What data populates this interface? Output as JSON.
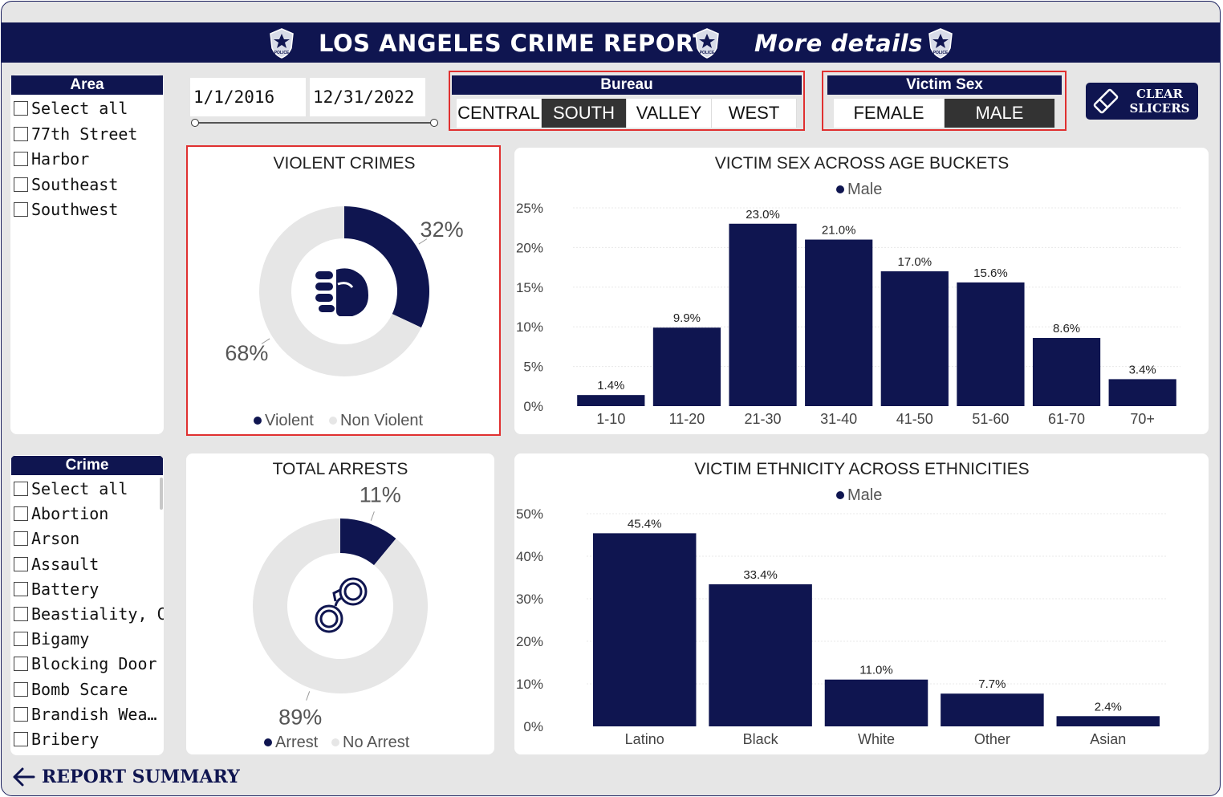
{
  "header": {
    "title": "LOS ANGELES CRIME REPORT",
    "more_details": "More details",
    "badge_text": "POLICE"
  },
  "area_slicer": {
    "title": "Area",
    "items": [
      "Select all",
      "77th Street",
      "Harbor",
      "Southeast",
      "Southwest"
    ]
  },
  "crime_slicer": {
    "title": "Crime",
    "items": [
      "Select all",
      "Abortion",
      "Arson",
      "Assault",
      "Battery",
      "Beastiality, Cri…",
      "Bigamy",
      "Blocking Door …",
      "Bomb Scare",
      "Brandish Wea…",
      "Bribery"
    ]
  },
  "date_range": {
    "start": "1/1/2016",
    "end": "12/31/2022"
  },
  "bureau_slicer": {
    "title": "Bureau",
    "options": [
      "CENTRAL",
      "SOUTH",
      "VALLEY",
      "WEST"
    ],
    "selected": "SOUTH"
  },
  "victim_sex_slicer": {
    "title": "Victim Sex",
    "options": [
      "FEMALE",
      "MALE"
    ],
    "selected": "MALE"
  },
  "clear_button": {
    "line1": "CLEAR",
    "line2": "SLICERS"
  },
  "footer": {
    "label": "REPORT SUMMARY"
  },
  "colors": {
    "navy": "#0f1550",
    "light_gray": "#e6e6e6",
    "highlight_red": "#e03030",
    "selected_tile": "#333333"
  },
  "icons": {
    "violent": "fist-icon",
    "arrests": "handcuffs-icon",
    "clear": "eraser-icon",
    "back": "arrow-left-icon",
    "badge": "police-badge-icon"
  },
  "chart_data": [
    {
      "type": "pie",
      "title": "VIOLENT CRIMES",
      "categories": [
        "Violent",
        "Non Violent"
      ],
      "values": [
        32,
        68
      ],
      "labels": [
        "32%",
        "68%"
      ],
      "legend_placement": "bottom",
      "colors": [
        "#0f1550",
        "#e6e6e6"
      ]
    },
    {
      "type": "pie",
      "title": "TOTAL ARRESTS",
      "categories": [
        "Arrest",
        "No Arrest"
      ],
      "values": [
        11,
        89
      ],
      "labels": [
        "11%",
        "89%"
      ],
      "legend_placement": "bottom",
      "colors": [
        "#0f1550",
        "#e6e6e6"
      ]
    },
    {
      "type": "bar",
      "title": "VICTIM SEX ACROSS AGE BUCKETS",
      "legend": "Male",
      "legend_placement": "top",
      "categories": [
        "1-10",
        "11-20",
        "21-30",
        "31-40",
        "41-50",
        "51-60",
        "61-70",
        "70+"
      ],
      "values": [
        1.4,
        9.9,
        23.0,
        21.0,
        17.0,
        15.6,
        8.6,
        3.4
      ],
      "value_labels": [
        "1.4%",
        "9.9%",
        "23.0%",
        "21.0%",
        "17.0%",
        "15.6%",
        "8.6%",
        "3.4%"
      ],
      "yticks": [
        "0%",
        "5%",
        "10%",
        "15%",
        "20%",
        "25%"
      ],
      "ylim": [
        0,
        25
      ],
      "grid": true
    },
    {
      "type": "bar",
      "title": "VICTIM ETHNICITY ACROSS ETHNICITIES",
      "legend": "Male",
      "legend_placement": "top",
      "categories": [
        "Latino",
        "Black",
        "White",
        "Other",
        "Asian"
      ],
      "values": [
        45.4,
        33.4,
        11.0,
        7.7,
        2.4
      ],
      "value_labels": [
        "45.4%",
        "33.4%",
        "11.0%",
        "7.7%",
        "2.4%"
      ],
      "yticks": [
        "0%",
        "10%",
        "20%",
        "30%",
        "40%",
        "50%"
      ],
      "ylim": [
        0,
        50
      ],
      "grid": true
    }
  ]
}
